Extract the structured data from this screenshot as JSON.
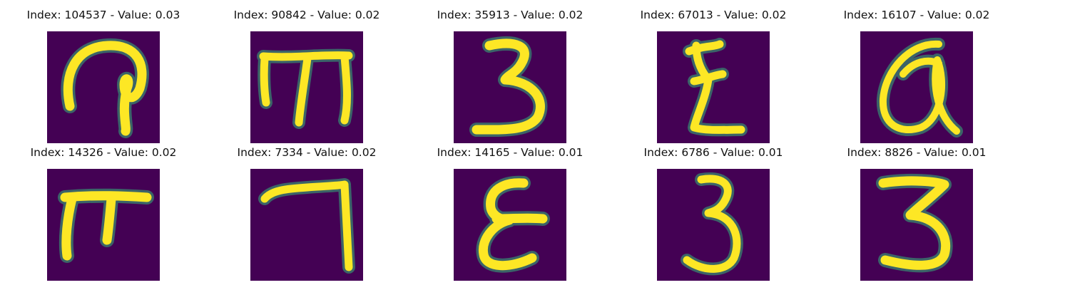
{
  "colors": {
    "background": "#440154",
    "stroke": "#fde725",
    "edge": "#35b779"
  },
  "panels": [
    {
      "title": "Index: 104537 - Value: 0.03",
      "glyph": "glyph-looped-hook"
    },
    {
      "title": "Index: 90842 - Value: 0.02",
      "glyph": "glyph-m-shape"
    },
    {
      "title": "Index: 35913 - Value: 0.02",
      "glyph": "glyph-three"
    },
    {
      "title": "Index: 67013 - Value: 0.02",
      "glyph": "glyph-z-shape"
    },
    {
      "title": "Index: 16107 - Value: 0.02",
      "glyph": "glyph-alpha-loop"
    },
    {
      "title": "Index: 14326 - Value: 0.02",
      "glyph": "glyph-pi-shape"
    },
    {
      "title": "Index: 7334 - Value: 0.02",
      "glyph": "glyph-seven-corner"
    },
    {
      "title": "Index: 14165 - Value: 0.01",
      "glyph": "glyph-epsilon"
    },
    {
      "title": "Index: 6786 - Value: 0.01",
      "glyph": "glyph-three"
    },
    {
      "title": "Index: 8826 - Value: 0.01",
      "glyph": "glyph-three"
    }
  ]
}
